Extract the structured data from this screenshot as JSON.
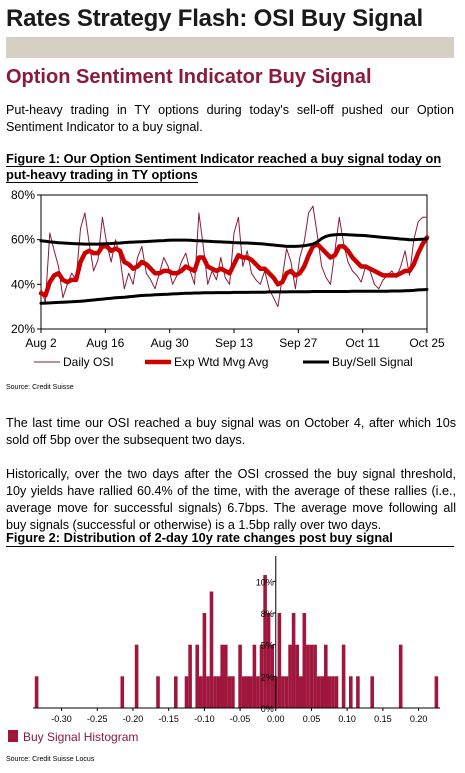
{
  "header": {
    "title": "Rates Strategy Flash: OSI Buy Signal",
    "subhead": "Option Sentiment Indicator Buy Signal"
  },
  "intro": "Put-heavy trading in TY options during today's sell-off pushed our Option Sentiment Indicator to a buy signal.",
  "figure1": {
    "title": "Figure 1: Our Option Sentiment Indicator reached a buy signal today on put-heavy trading in TY options",
    "source": "Source: Credit Suisse"
  },
  "paragraphs": [
    "The last time our OSI reached a buy signal was on October 4, after which 10s sold off 5bp over the subsequent two days.",
    "Historically, over the two days after the OSI crossed the buy signal threshold, 10y yields have rallied 60.4% of the time, with the average of these rallies (i.e., average move for successful signals) 6.7bps. The average move following all buy signals (successful or otherwise) is a 1.5bp rally over two days."
  ],
  "figure2": {
    "title": "Figure 2: Distribution of 2-day 10y rate changes post buy signal",
    "source": "Source: Credit Suisse Locus"
  },
  "colors": {
    "maroon": "#8b1a3c",
    "red": "#cc0000",
    "black": "#000000",
    "title_band": "#d5cfc4"
  },
  "chart_data": [
    {
      "type": "line",
      "ylim": [
        20,
        80
      ],
      "yticks": [
        "20%",
        "40%",
        "60%",
        "80%"
      ],
      "categories": [
        "Aug 2",
        "Aug 16",
        "Aug 30",
        "Sep 13",
        "Sep 27",
        "Oct 11",
        "Oct 25"
      ],
      "x": [
        0,
        1,
        2,
        3,
        4,
        5,
        6,
        7,
        8,
        9,
        10,
        11,
        12,
        13,
        14,
        15,
        16,
        17,
        18,
        19,
        20,
        21,
        22,
        23,
        24,
        25,
        26,
        27,
        28,
        29,
        30,
        31,
        32,
        33,
        34,
        35,
        36,
        37,
        38,
        39,
        40,
        41,
        42,
        43,
        44,
        45,
        46,
        47,
        48,
        49,
        50,
        51,
        52,
        53,
        54,
        55,
        56,
        57,
        58,
        59,
        60,
        61,
        62,
        63,
        64,
        65,
        66,
        67,
        68,
        69,
        70,
        71,
        72,
        73,
        74,
        75,
        76,
        77,
        78,
        79,
        80,
        81,
        82,
        83,
        84,
        85,
        86,
        87,
        88
      ],
      "grid": false,
      "legend_position": "bottom",
      "series": [
        {
          "name": "Daily OSI",
          "color": "#8b1a3c",
          "values": [
            38,
            32,
            63,
            55,
            48,
            34,
            40,
            45,
            42,
            65,
            72,
            58,
            46,
            51,
            70,
            58,
            50,
            60,
            52,
            38,
            45,
            40,
            52,
            57,
            45,
            42,
            38,
            45,
            52,
            48,
            40,
            44,
            50,
            54,
            46,
            40,
            72,
            57,
            40,
            46,
            42,
            52,
            43,
            40,
            63,
            70,
            48,
            55,
            45,
            42,
            40,
            46,
            38,
            34,
            30,
            43,
            56,
            50,
            38,
            52,
            59,
            72,
            75,
            62,
            48,
            43,
            40,
            55,
            70,
            58,
            50,
            46,
            44,
            41,
            48,
            46,
            40,
            38,
            42,
            44,
            46,
            43,
            48,
            55,
            44,
            60,
            68,
            70,
            70
          ]
        },
        {
          "name": "Exp Wtd Mvg Avg",
          "color": "#cc0000",
          "values": [
            36,
            35,
            41,
            44,
            45,
            42,
            41,
            42,
            42,
            50,
            54,
            55,
            54,
            54,
            57,
            57,
            55,
            56,
            55,
            50,
            49,
            47,
            48,
            50,
            49,
            47,
            45,
            45,
            46,
            46,
            45,
            45,
            46,
            48,
            47,
            46,
            52,
            52,
            48,
            47,
            46,
            47,
            46,
            45,
            49,
            53,
            52,
            52,
            51,
            49,
            47,
            47,
            45,
            43,
            40,
            41,
            45,
            46,
            44,
            45,
            48,
            53,
            57,
            58,
            56,
            54,
            52,
            53,
            57,
            57,
            55,
            52,
            50,
            48,
            48,
            47,
            46,
            45,
            44,
            44,
            44,
            44,
            45,
            46,
            46,
            49,
            54,
            58,
            61
          ]
        },
        {
          "name": "Buy/Sell Signal",
          "color": "#000000",
          "values": [
            [
              59.5,
              59.3,
              59.0,
              58.8,
              58.6,
              58.5,
              58.4,
              58.3,
              58.2,
              58.1,
              58.0,
              58.0,
              58.0,
              58.0,
              58.1,
              58.2,
              58.3,
              58.4,
              58.5,
              58.7,
              58.8,
              58.9,
              59.0,
              59.1,
              59.2,
              59.3,
              59.4,
              59.5,
              59.6,
              59.7,
              59.8,
              59.8,
              59.8,
              59.8,
              59.7,
              59.6,
              59.5,
              59.4,
              59.3,
              59.2,
              59.1,
              59.0,
              58.9,
              58.8,
              58.7,
              58.6,
              58.5,
              58.5,
              58.4,
              58.3,
              58.2,
              58.0,
              57.8,
              57.6,
              57.4,
              57.2,
              57.0,
              57.0,
              57.0,
              57.1,
              57.3,
              57.6,
              58.0,
              59.0,
              60.5,
              61.5,
              62.0,
              62.2,
              62.3,
              62.3,
              62.2,
              62.1,
              62.0,
              61.9,
              61.8,
              61.6,
              61.4,
              61.2,
              61.0,
              60.9,
              60.7,
              60.5,
              60.3,
              60.2,
              60.0,
              60.0,
              60.1,
              60.2,
              60.3
            ],
            [
              31.5,
              31.6,
              31.7,
              31.8,
              31.9,
              32.0,
              32.1,
              32.2,
              32.3,
              32.4,
              32.6,
              32.8,
              33.0,
              33.2,
              33.4,
              33.6,
              33.8,
              34.0,
              34.1,
              34.2,
              34.4,
              34.6,
              34.8,
              35.0,
              35.1,
              35.2,
              35.3,
              35.4,
              35.5,
              35.6,
              35.7,
              35.8,
              35.9,
              36.0,
              36.0,
              36.1,
              36.1,
              36.2,
              36.2,
              36.2,
              36.3,
              36.3,
              36.3,
              36.3,
              36.4,
              36.4,
              36.4,
              36.4,
              36.5,
              36.5,
              36.5,
              36.5,
              36.6,
              36.6,
              36.6,
              36.6,
              36.6,
              36.7,
              36.7,
              36.7,
              36.7,
              36.7,
              36.8,
              36.8,
              36.8,
              36.8,
              36.8,
              36.8,
              36.8,
              36.8,
              36.8,
              36.9,
              36.9,
              36.9,
              36.9,
              36.9,
              36.9,
              36.9,
              36.9,
              36.9,
              37.0,
              37.0,
              37.0,
              37.1,
              37.2,
              37.3,
              37.5,
              37.6,
              37.7
            ]
          ]
        }
      ]
    },
    {
      "type": "bar",
      "title": "",
      "ylim": [
        0,
        12
      ],
      "yticks": [
        "0%",
        "2%",
        "5%",
        "8%",
        "10%"
      ],
      "xlim": [
        -0.34,
        0.23
      ],
      "xticks": [
        "-0.30",
        "-0.25",
        "-0.20",
        "-0.15",
        "-0.10",
        "-0.05",
        "0.00",
        "0.05",
        "0.10",
        "0.15",
        "0.20"
      ],
      "xtick_values": [
        -0.3,
        -0.25,
        -0.2,
        -0.15,
        -0.1,
        -0.05,
        0.0,
        0.05,
        0.1,
        0.15,
        0.2
      ],
      "bin_width": 0.005,
      "legend_position": "bottom-left",
      "series": [
        {
          "name": "Buy Signal Histogram",
          "color": "#a0173d",
          "bins": [
            -0.335,
            -0.215,
            -0.195,
            -0.165,
            -0.14,
            -0.125,
            -0.12,
            -0.11,
            -0.105,
            -0.1,
            -0.095,
            -0.09,
            -0.085,
            -0.08,
            -0.075,
            -0.07,
            -0.065,
            -0.06,
            -0.05,
            -0.045,
            -0.04,
            -0.035,
            -0.03,
            -0.025,
            -0.02,
            -0.015,
            -0.01,
            -0.005,
            0.0,
            0.005,
            0.01,
            0.015,
            0.02,
            0.025,
            0.03,
            0.035,
            0.04,
            0.045,
            0.05,
            0.055,
            0.06,
            0.065,
            0.07,
            0.075,
            0.08,
            0.085,
            0.095,
            0.105,
            0.115,
            0.135,
            0.175,
            0.225
          ],
          "values": [
            2.5,
            2.5,
            5.0,
            2.5,
            2.5,
            2.5,
            5.0,
            5.0,
            2.5,
            7.5,
            2.5,
            9.2,
            2.5,
            2.5,
            5.0,
            5.0,
            2.5,
            2.5,
            5.0,
            2.5,
            2.5,
            2.5,
            5.0,
            2.5,
            5.0,
            10.5,
            7.5,
            5.0,
            2.5,
            7.5,
            2.5,
            2.5,
            5.0,
            7.5,
            5.0,
            2.5,
            7.5,
            5.0,
            5.0,
            5.0,
            2.5,
            2.5,
            5.0,
            2.5,
            2.5,
            2.5,
            5.0,
            2.5,
            2.5,
            2.5,
            5.0,
            2.5
          ]
        }
      ]
    }
  ]
}
